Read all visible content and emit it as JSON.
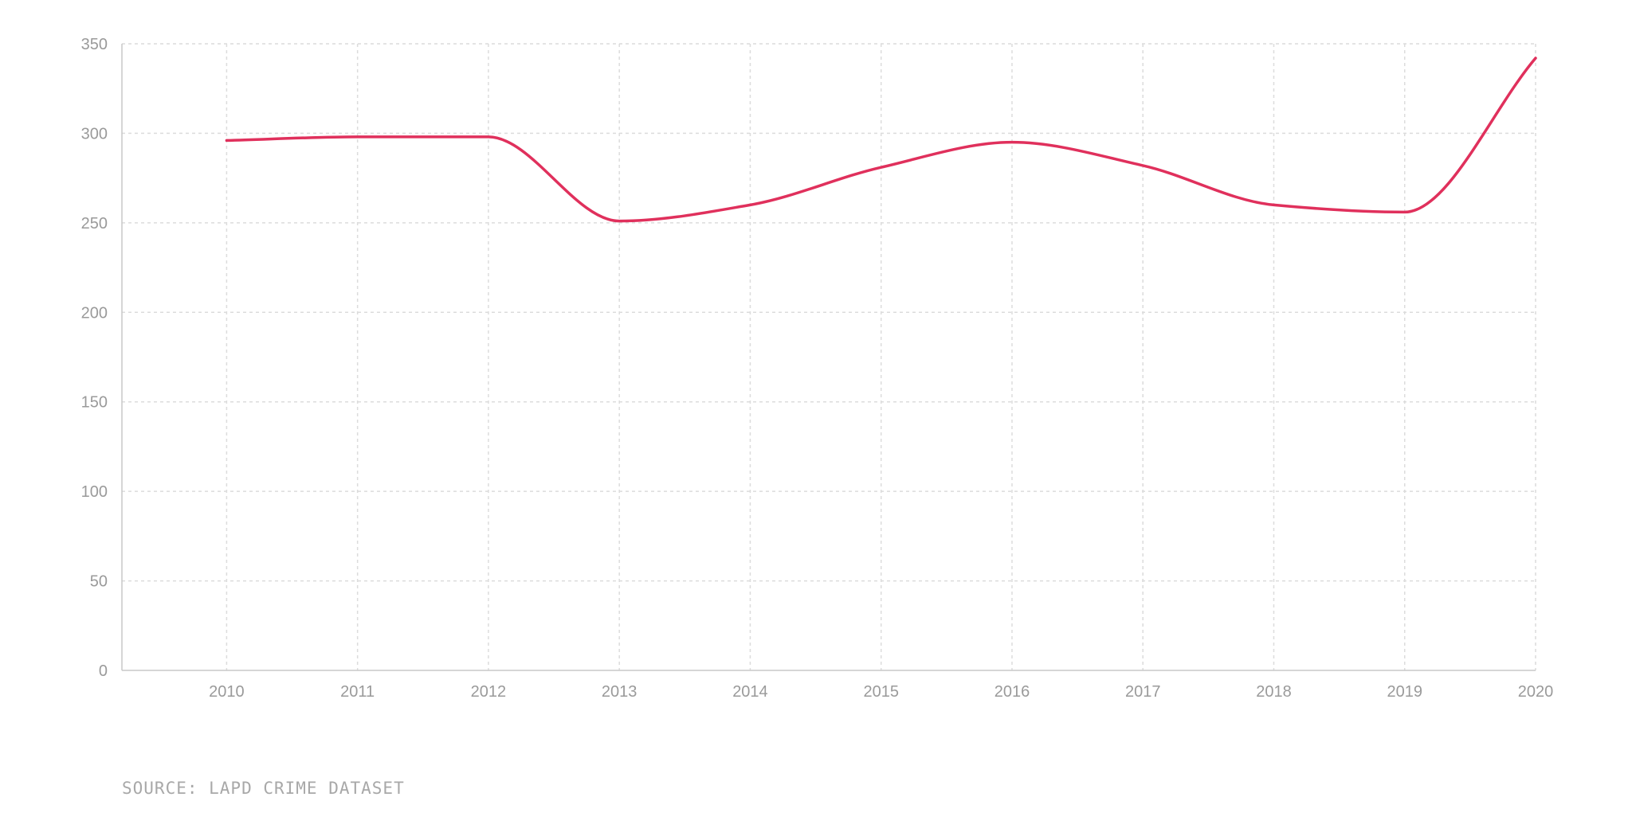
{
  "chart_data": {
    "type": "line",
    "title": "",
    "xlabel": "",
    "ylabel": "",
    "x": [
      2010,
      2011,
      2012,
      2013,
      2014,
      2015,
      2016,
      2017,
      2018,
      2019,
      2020
    ],
    "series": [
      {
        "values": [
          296,
          298,
          298,
          251,
          260,
          281,
          295,
          282,
          260,
          256,
          342
        ],
        "color": "#e0305c"
      }
    ],
    "y_ticks": [
      0,
      50,
      100,
      150,
      200,
      250,
      300,
      350
    ],
    "ylim": [
      0,
      350
    ],
    "xlim": [
      2009.2,
      2020
    ],
    "grid": true,
    "smooth": true,
    "legend": "none"
  },
  "source": "SOURCE: LAPD CRIME DATASET",
  "colors": {
    "grid": "#dcdcdc",
    "axis": "#c8c8c8",
    "tick_text": "#9a9a9a",
    "line": "#e0305c"
  }
}
